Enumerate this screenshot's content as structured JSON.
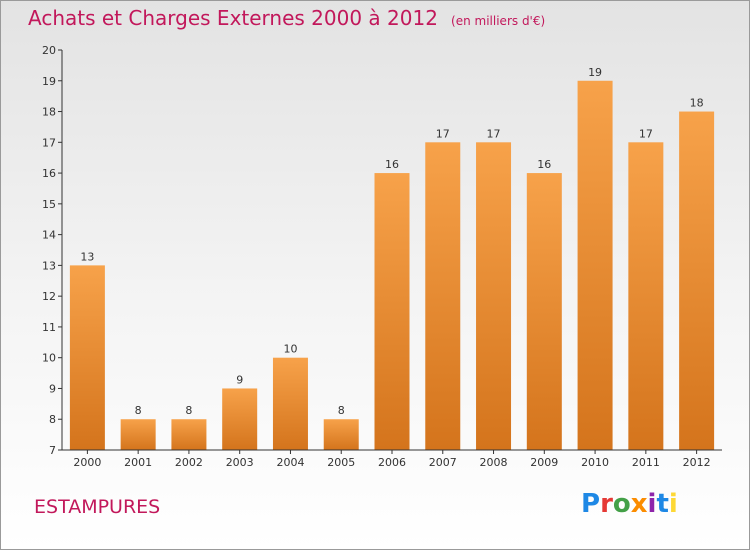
{
  "header": {
    "title": "Achats et Charges Externes 2000 à 2012",
    "subtitle": "(en milliers d'€)"
  },
  "commune": "ESTAMPURES",
  "brand": {
    "text": "Proxiti",
    "letter_colors": [
      "#1e88e5",
      "#e53935",
      "#43a047",
      "#fb8c00",
      "#8e24aa",
      "#1e88e5",
      "#fdd835"
    ]
  },
  "colors": {
    "bar_top": "#f7a24a",
    "bar_bottom": "#d4741c",
    "title": "#c2185b",
    "axis": "#333333",
    "grid": "#cfcfcf"
  },
  "chart_data": {
    "type": "bar",
    "categories": [
      "2000",
      "2001",
      "2002",
      "2003",
      "2004",
      "2005",
      "2006",
      "2007",
      "2008",
      "2009",
      "2010",
      "2011",
      "2012"
    ],
    "values": [
      13,
      8,
      8,
      9,
      10,
      8,
      16,
      17,
      17,
      16,
      19,
      17,
      18
    ],
    "title": "Achats et Charges Externes 2000 à 2012",
    "xlabel": "",
    "ylabel": "",
    "ylim": [
      7,
      20
    ],
    "yticks": [
      7,
      8,
      9,
      10,
      11,
      12,
      13,
      14,
      15,
      16,
      17,
      18,
      19,
      20
    ],
    "grid": false,
    "data_labels": true
  }
}
